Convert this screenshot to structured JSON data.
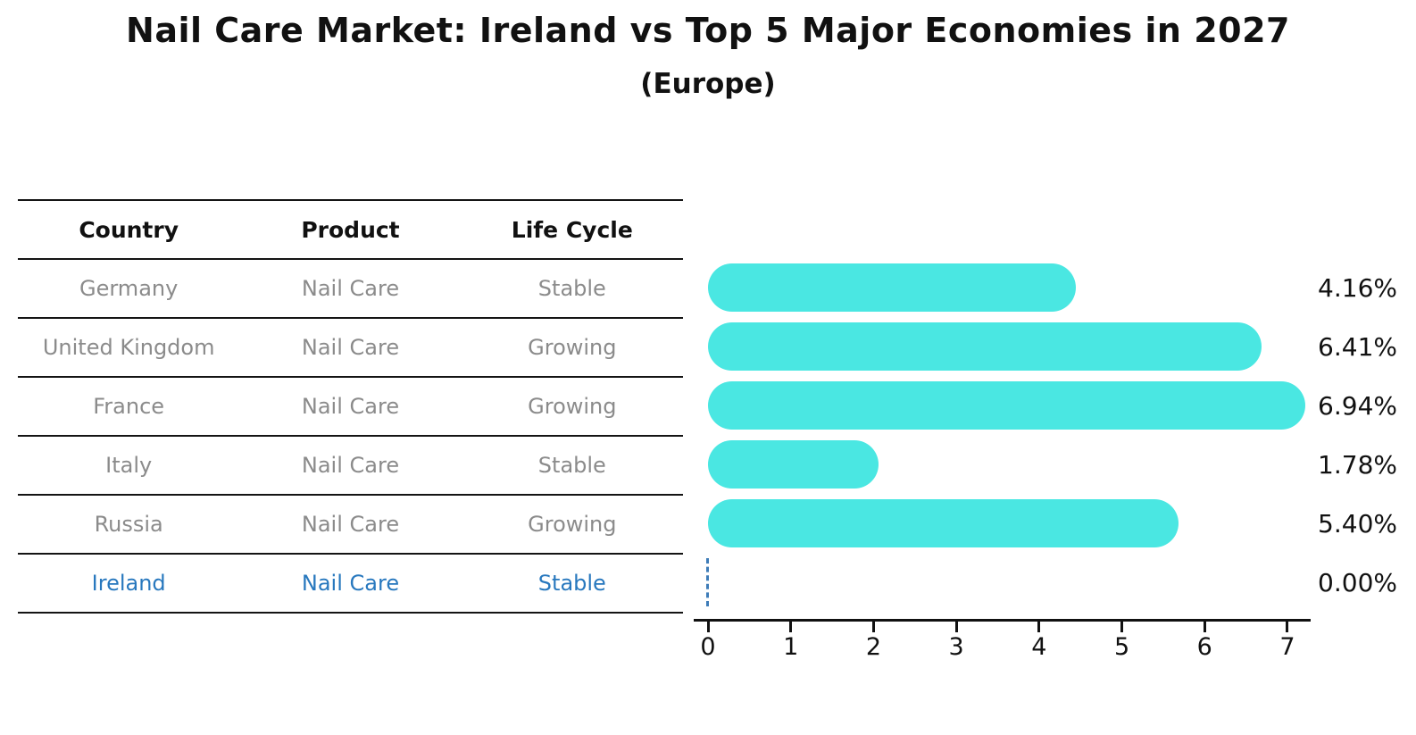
{
  "title": "Nail Care Market: Ireland vs Top 5 Major Economies in 2027",
  "subtitle": "(Europe)",
  "colors": {
    "bar": "#4ae7e2",
    "highlight_text": "#2878be",
    "zero_marker": "#3e7cb8",
    "row_text": "#8b8b8b",
    "axis": "#111111"
  },
  "table": {
    "headers": [
      "Country",
      "Product",
      "Life Cycle"
    ],
    "rows": [
      {
        "country": "Germany",
        "product": "Nail Care",
        "life_cycle": "Stable",
        "highlight": false
      },
      {
        "country": "United Kingdom",
        "product": "Nail Care",
        "life_cycle": "Growing",
        "highlight": false
      },
      {
        "country": "France",
        "product": "Nail Care",
        "life_cycle": "Growing",
        "highlight": false
      },
      {
        "country": "Italy",
        "product": "Nail Care",
        "life_cycle": "Stable",
        "highlight": false
      },
      {
        "country": "Russia",
        "product": "Nail Care",
        "life_cycle": "Growing",
        "highlight": false
      },
      {
        "country": "Ireland",
        "product": "Nail Care",
        "life_cycle": "Stable",
        "highlight": true
      }
    ]
  },
  "chart_data": {
    "type": "bar",
    "orientation": "horizontal",
    "title": "Nail Care Market: Ireland vs Top 5 Major Economies in 2027",
    "subtitle": "(Europe)",
    "categories": [
      "Germany",
      "United Kingdom",
      "France",
      "Italy",
      "Russia",
      "Ireland"
    ],
    "values": [
      4.16,
      6.41,
      6.94,
      1.78,
      5.4,
      0.0
    ],
    "value_labels": [
      "4.16%",
      "6.41%",
      "6.94%",
      "1.78%",
      "5.40%",
      "0.00%"
    ],
    "x_ticks": [
      "0",
      "1",
      "2",
      "3",
      "4",
      "5",
      "6",
      "7"
    ],
    "xlim": [
      0,
      7.29
    ],
    "grid": false,
    "legend": false,
    "bar_color": "#4ae7e2",
    "highlight_index": 5
  }
}
